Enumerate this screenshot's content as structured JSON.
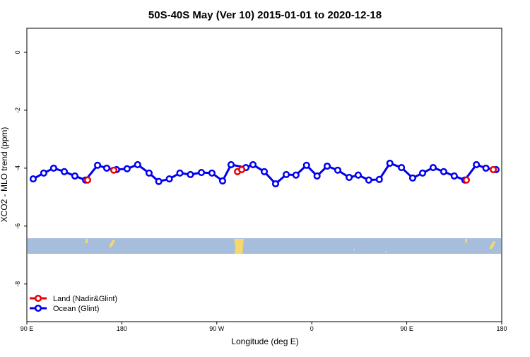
{
  "chart_data": {
    "type": "line",
    "title": "50S-40S May (Ver 10)   2015-01-01 to 2020-12-18",
    "x_label": "Longitude (deg E)",
    "y_label": "XCO2 - MLO trend (ppm)",
    "xlim": [
      90,
      540
    ],
    "xticks": [
      {
        "value": 90,
        "label": "90 E"
      },
      {
        "value": 180,
        "label": "180"
      },
      {
        "value": 270,
        "label": "90 W"
      },
      {
        "value": 360,
        "label": "0"
      },
      {
        "value": 450,
        "label": "90 E"
      },
      {
        "value": 540,
        "label": "180"
      }
    ],
    "ylim": [
      -9.3,
      0.83
    ],
    "yticks": [
      0,
      -2,
      -4,
      -6,
      -8
    ],
    "legend": "bottomleft",
    "series": [
      {
        "name": "Ocean (Glint)",
        "color": "#0000ee",
        "x": [
          96,
          106,
          115.4,
          125.5,
          135.5,
          145.6,
          157,
          165.7,
          175,
          185,
          195,
          205.8,
          215,
          225,
          235,
          245,
          255.4,
          265.4,
          275.5,
          283.5,
          297.6,
          304.3,
          315,
          325.7,
          335.8,
          345,
          355,
          365,
          374.6,
          384.6,
          395.4,
          404,
          414,
          424,
          434,
          445,
          455.6,
          465,
          475,
          485,
          495,
          505,
          516,
          525,
          534.6
        ],
        "values": [
          -4.37,
          -4.17,
          -4.0,
          -4.12,
          -4.27,
          -4.41,
          -3.9,
          -4.0,
          -4.05,
          -4.02,
          -3.88,
          -4.17,
          -4.46,
          -4.37,
          -4.17,
          -4.22,
          -4.15,
          -4.17,
          -4.44,
          -3.88,
          -3.98,
          -3.88,
          -4.12,
          -4.54,
          -4.22,
          -4.24,
          -3.9,
          -4.27,
          -3.93,
          -4.07,
          -4.32,
          -4.24,
          -4.41,
          -4.39,
          -3.83,
          -3.98,
          -4.34,
          -4.17,
          -3.98,
          -4.12,
          -4.27,
          -4.41,
          -3.88,
          -4.0,
          -4.05
        ]
      },
      {
        "name": "Land (Nadir&Glint)",
        "color": "#ee0000",
        "x": [
          147.6,
          172.4,
          289.6,
          293.6,
          506.5,
          532
        ],
        "values": [
          -4.41,
          -4.07,
          -4.12,
          -4.05,
          -4.41,
          -4.05
        ]
      }
    ]
  }
}
